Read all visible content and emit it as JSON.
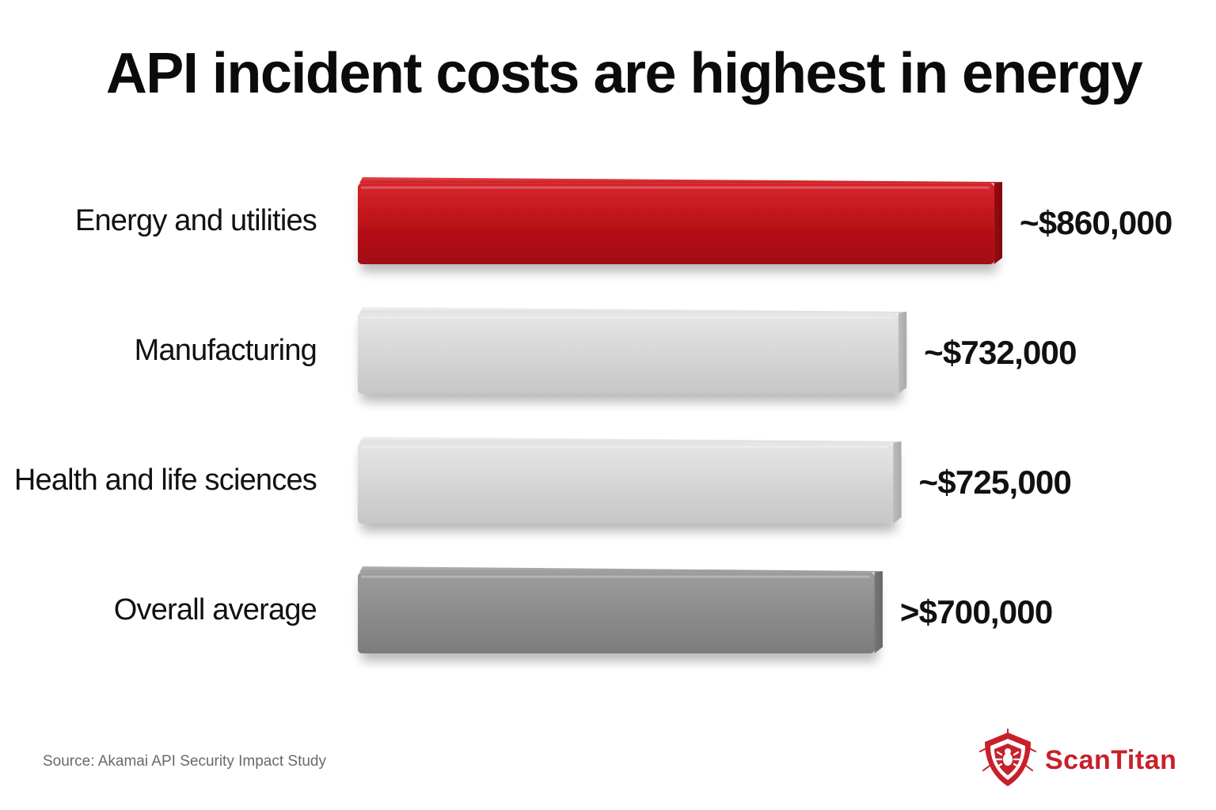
{
  "title": "API incident costs are highest in energy",
  "source": "Source: Akamai API Security Impact Study",
  "brand": {
    "name": "ScanTitan",
    "icon": "shield-bug-icon",
    "color": "#c8202a"
  },
  "chart_data": {
    "type": "bar",
    "orientation": "horizontal",
    "title": "API incident costs are highest in energy",
    "categories": [
      "Energy and utilities",
      "Manufacturing",
      "Health and life sciences",
      "Overall average"
    ],
    "values": [
      860000,
      732000,
      725000,
      700000
    ],
    "value_labels": [
      "~$860,000",
      "~$732,000",
      "~$725,000",
      ">$700,000"
    ],
    "colors": [
      "#c0141c",
      "#d8d8d8",
      "#d3d3d3",
      "#8f8f8f"
    ],
    "xlim": [
      0,
      860000
    ],
    "grid": false,
    "legend": "none",
    "style": "3d"
  }
}
